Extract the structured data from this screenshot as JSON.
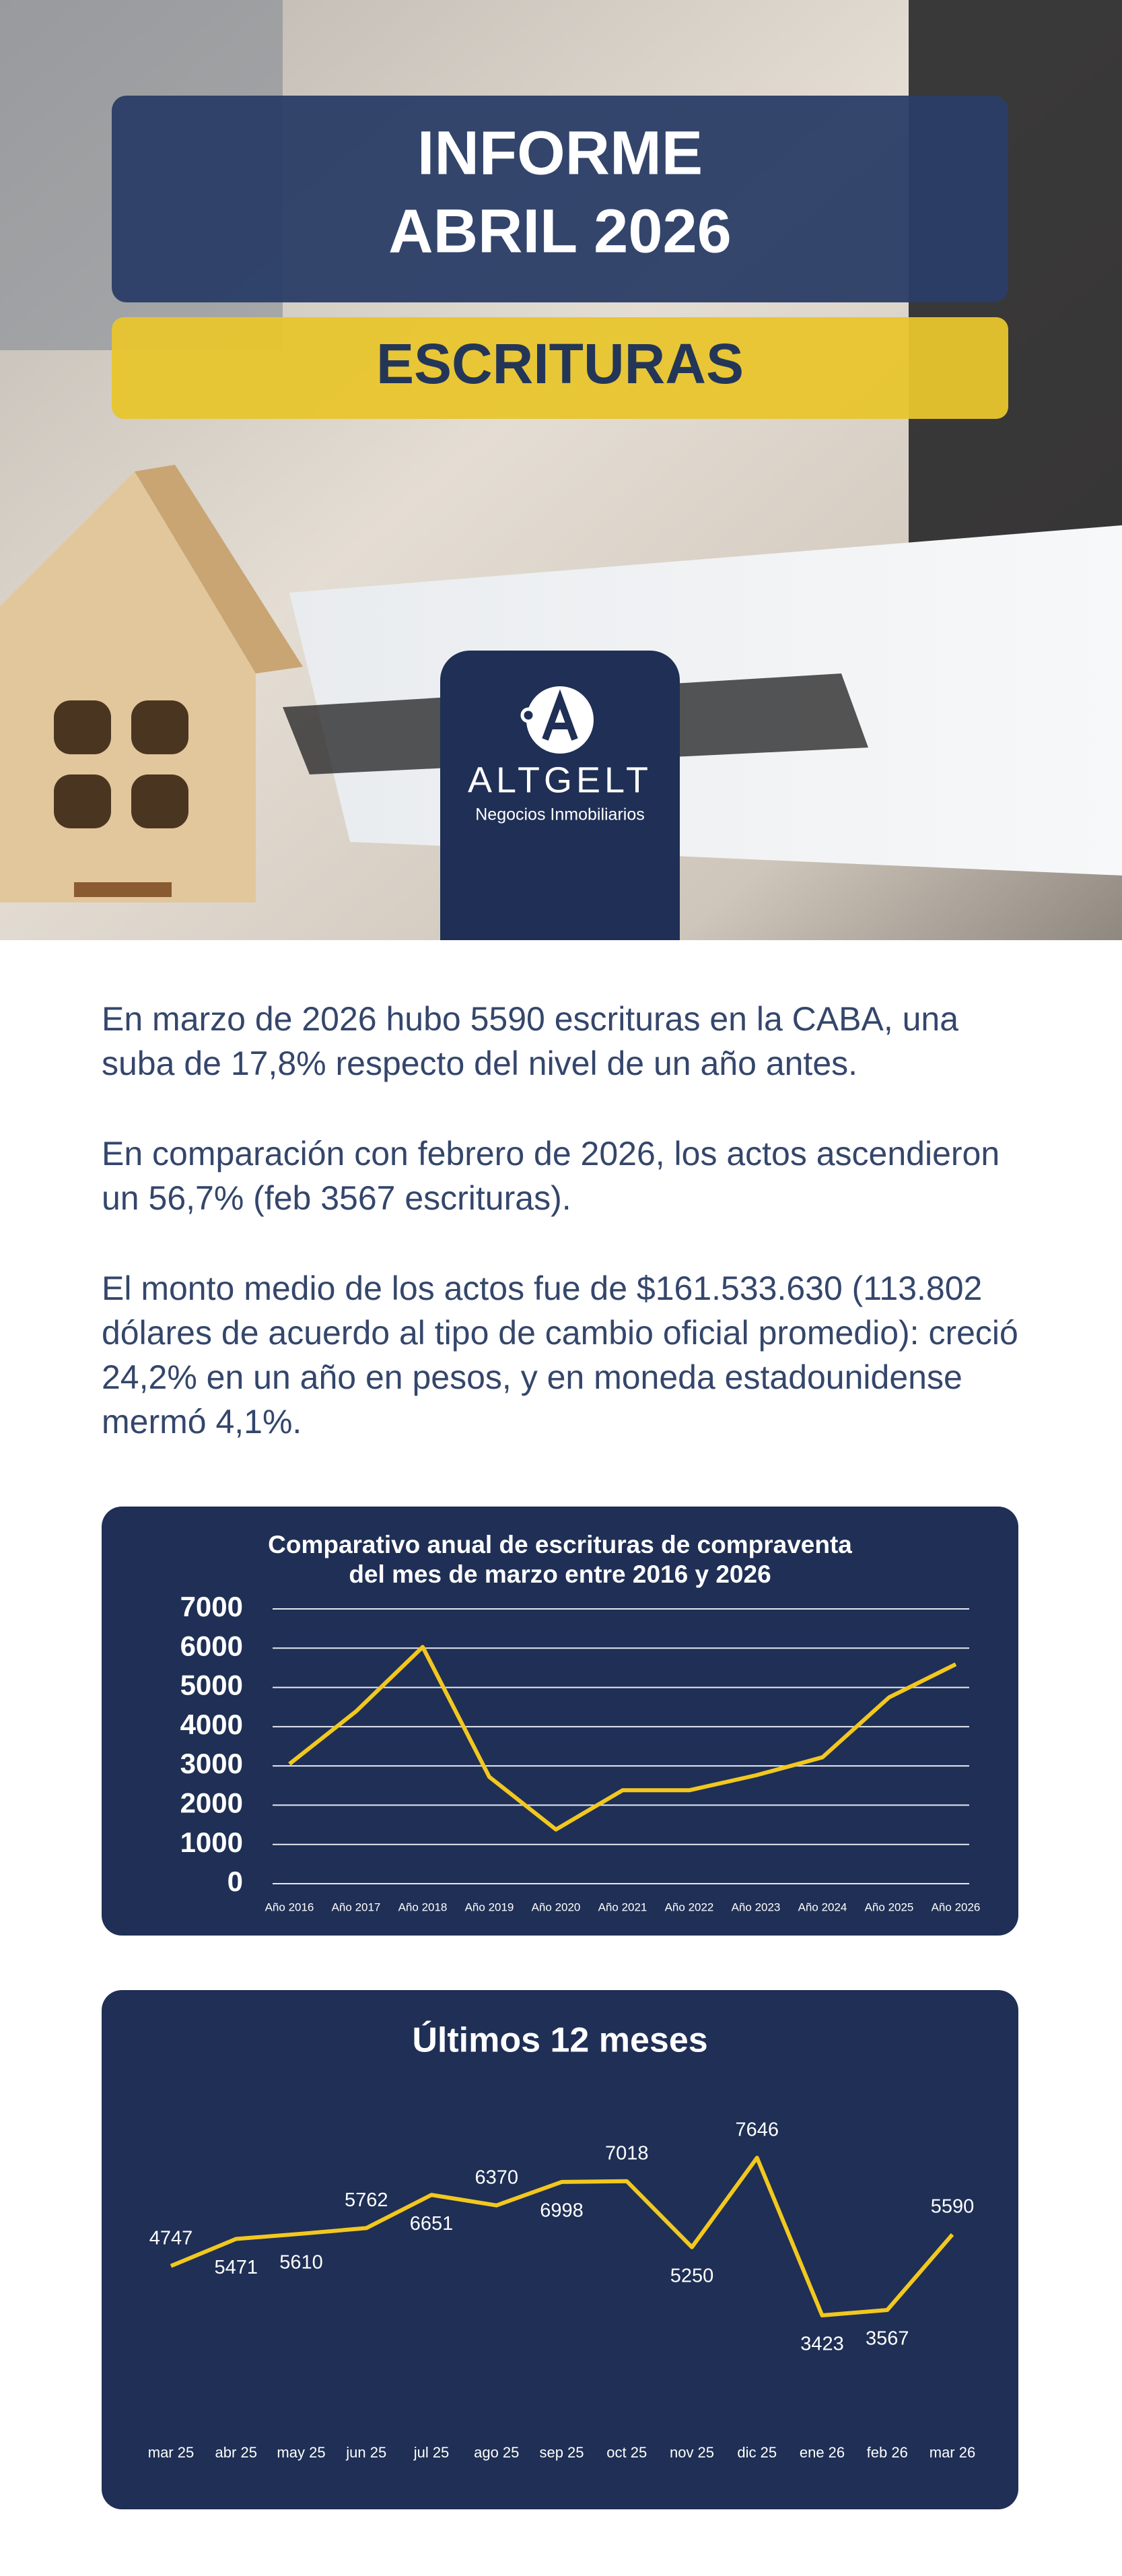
{
  "header": {
    "title_lines": [
      "INFORME",
      "ABRIL 2026"
    ],
    "subtitle": "ESCRITURAS"
  },
  "logo": {
    "name": "ALTGELT",
    "tagline": "Negocios Inmobiliarios"
  },
  "paragraphs": [
    "En marzo de 2026 hubo 5590 escrituras en la CABA, una suba de 17,8% respecto del nivel de un año antes.",
    "En comparación con febrero de 2026, los actos ascendieron un 56,7% (feb 3567 escrituras).",
    "El monto medio de los actos fue de $161.533.630 (113.802 dólares de acuerdo al tipo de cambio oficial promedio): creció 24,2% en un año en pesos, y en moneda estadounidense mermó 4,1%."
  ],
  "chart_data": [
    {
      "type": "line",
      "title": [
        "Comparativo anual de escrituras de compraventa",
        "del mes de marzo entre 2016 y 2026"
      ],
      "categories": [
        "Año 2016",
        "Año 2017",
        "Año 2018",
        "Año 2019",
        "Año 2020",
        "Año 2021",
        "Año 2022",
        "Año 2023",
        "Año 2024",
        "Año 2025",
        "Año 2026"
      ],
      "values": [
        3050,
        4390,
        6030,
        2720,
        1380,
        2380,
        2380,
        2760,
        3220,
        4747,
        5590
      ],
      "color": "#f2c81f",
      "ylim": [
        0,
        7000
      ],
      "yticks": [
        0,
        1000,
        2000,
        3000,
        4000,
        5000,
        6000,
        7000
      ],
      "grid": true
    },
    {
      "type": "line",
      "title": [
        "Últimos 12 meses"
      ],
      "categories": [
        "mar 25",
        "abr 25",
        "may 25",
        "jun 25",
        "jul 25",
        "ago 25",
        "sep 25",
        "oct 25",
        "nov 25",
        "dic 25",
        "ene 26",
        "feb 26",
        "mar 26"
      ],
      "values": [
        4747,
        5471,
        5610,
        5762,
        6651,
        6370,
        6998,
        7018,
        5250,
        7646,
        3423,
        3567,
        5590
      ],
      "color": "#f2c81f"
    }
  ]
}
